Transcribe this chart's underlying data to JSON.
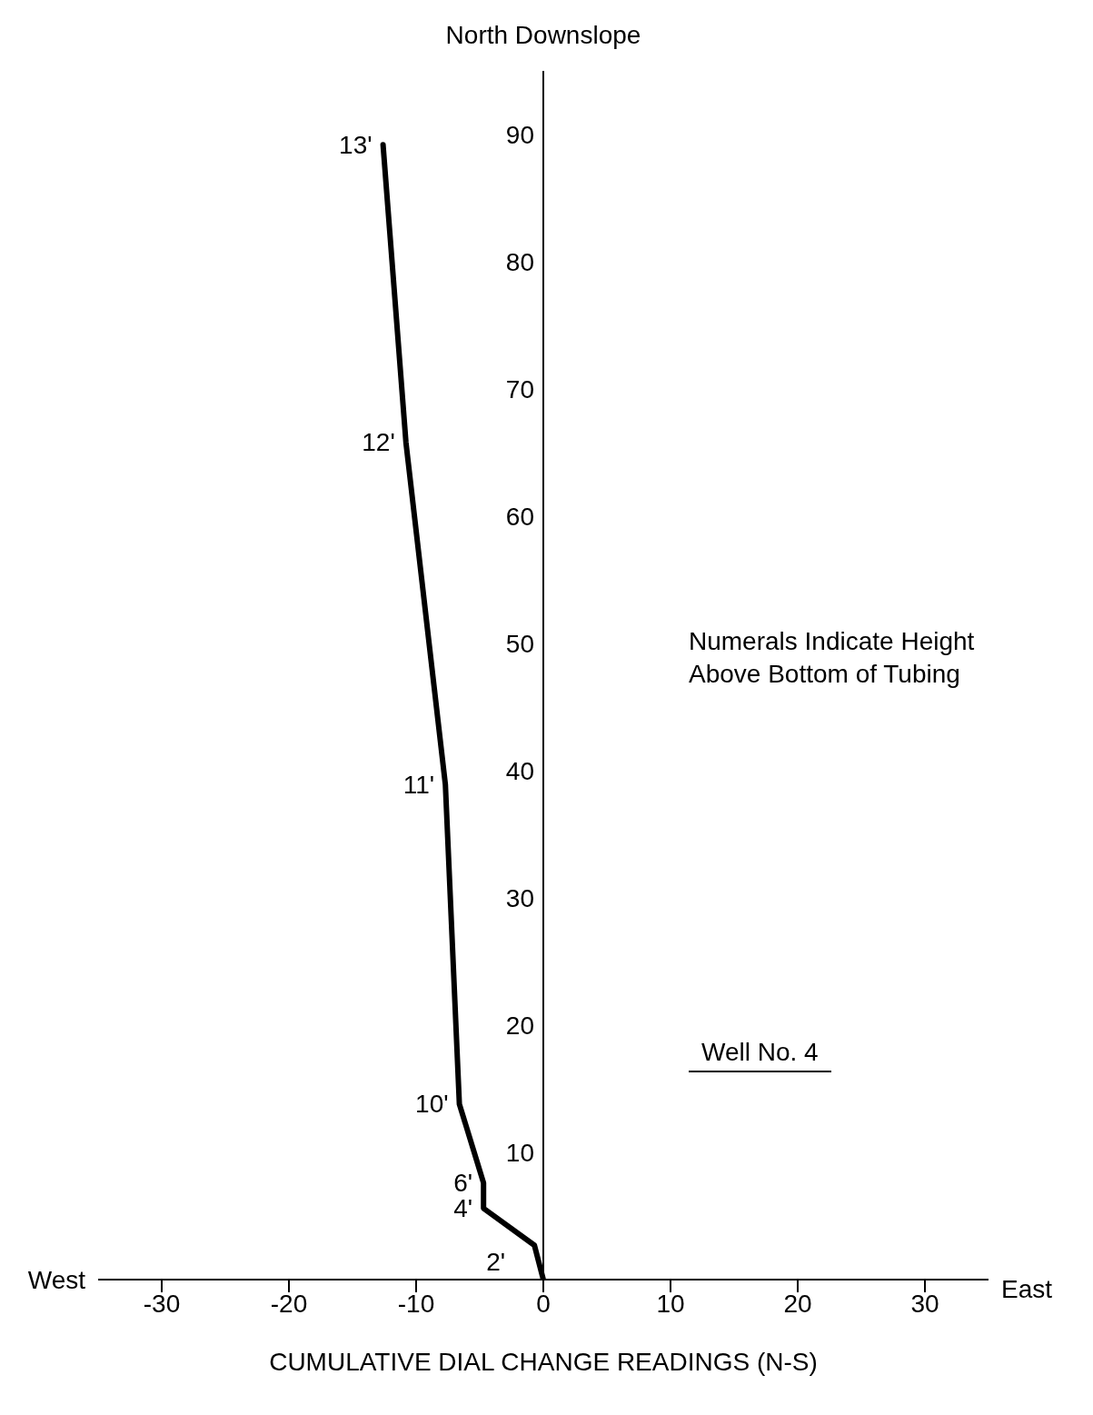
{
  "chart_data": {
    "type": "line",
    "ylabel": "North Downslope",
    "xlabel": "CUMULATIVE DIAL CHANGE READINGS (N-S)",
    "x": [
      0,
      -0.7,
      -4.7,
      -4.7,
      -6.6,
      -7.7,
      -10.8,
      -12.6
    ],
    "values": [
      0,
      2.7,
      5.6,
      7.6,
      13.8,
      38.9,
      65.8,
      89.2
    ],
    "color": "#000000",
    "xlim": [
      -35,
      35
    ],
    "xticks": [
      -30,
      -20,
      -10,
      0,
      10,
      20,
      30
    ],
    "ylim": [
      0,
      95
    ],
    "yticks": [
      10,
      20,
      30,
      40,
      50,
      60,
      70,
      80,
      90
    ],
    "annotations": [
      {
        "text": "2'",
        "x": -0.7,
        "y": 2.7
      },
      {
        "text": "4'",
        "x": -4.7,
        "y": 5.6
      },
      {
        "text": "6'",
        "x": -4.7,
        "y": 7.6
      },
      {
        "text": "10'",
        "x": -6.6,
        "y": 13.8
      },
      {
        "text": "11'",
        "x": -7.7,
        "y": 38.9
      },
      {
        "text": "12'",
        "x": -10.8,
        "y": 65.8
      },
      {
        "text": "13'",
        "x": -12.6,
        "y": 89.2
      },
      "West",
      "East",
      "Numerals Indicate Height Above Bottom of Tubing",
      "Well No. 4"
    ]
  }
}
